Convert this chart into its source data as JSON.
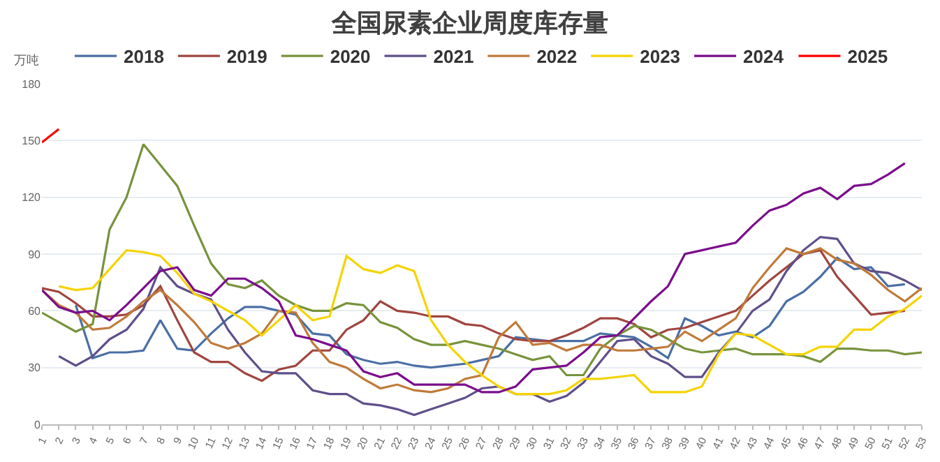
{
  "chart_data": {
    "type": "line",
    "title": "全国尿素企业周度库存量",
    "ylabel": "万吨",
    "categories": [
      "1",
      "2",
      "3",
      "4",
      "5",
      "6",
      "7",
      "8",
      "9",
      "10",
      "11",
      "12",
      "13",
      "14",
      "15",
      "16",
      "17",
      "18",
      "19",
      "20",
      "21",
      "22",
      "23",
      "24",
      "25",
      "26",
      "27",
      "28",
      "29",
      "30",
      "31",
      "32",
      "33",
      "34",
      "35",
      "36",
      "37",
      "38",
      "39",
      "40",
      "41",
      "42",
      "43",
      "44",
      "45",
      "46",
      "47",
      "48",
      "49",
      "50",
      "51",
      "52",
      "53"
    ],
    "ylim": [
      0,
      180
    ],
    "yticks": [
      0,
      30,
      60,
      90,
      120,
      150,
      180
    ],
    "grid": "y",
    "legend": "top",
    "marker": "none",
    "line_style": "solid",
    "series": [
      {
        "name": "2018",
        "color": "#4a6fa5",
        "values": [
          null,
          null,
          63,
          35,
          38,
          38,
          39,
          55,
          40,
          39,
          48,
          56,
          62,
          62,
          60,
          58,
          48,
          47,
          37,
          34,
          32,
          33,
          31,
          30,
          31,
          32,
          34,
          36,
          46,
          45,
          44,
          44,
          44,
          48,
          47,
          46,
          41,
          35,
          56,
          52,
          47,
          49,
          46,
          52,
          65,
          70,
          78,
          88,
          82,
          83,
          73,
          74,
          null
        ]
      },
      {
        "name": "2019",
        "color": "#a0453f",
        "values": [
          72,
          70,
          64,
          57,
          57,
          58,
          63,
          73,
          55,
          38,
          33,
          33,
          27,
          23,
          29,
          31,
          39,
          39,
          50,
          55,
          65,
          60,
          59,
          57,
          57,
          53,
          52,
          48,
          45,
          44,
          44,
          47,
          51,
          56,
          56,
          53,
          46,
          50,
          51,
          54,
          57,
          60,
          68,
          76,
          83,
          90,
          92,
          78,
          68,
          58,
          59,
          60,
          null
        ]
      },
      {
        "name": "2020",
        "color": "#77933c",
        "values": [
          59,
          54,
          49,
          53,
          103,
          120,
          148,
          137,
          126,
          105,
          85,
          74,
          72,
          76,
          68,
          63,
          60,
          60,
          64,
          63,
          54,
          51,
          45,
          42,
          42,
          44,
          42,
          40,
          37,
          34,
          36,
          26,
          26,
          40,
          47,
          52,
          50,
          45,
          40,
          38,
          39,
          40,
          37,
          37,
          37,
          36,
          33,
          40,
          40,
          39,
          39,
          37,
          38
        ]
      },
      {
        "name": "2021",
        "color": "#5f4f8a",
        "values": [
          null,
          36,
          31,
          36,
          45,
          50,
          61,
          83,
          73,
          69,
          66,
          50,
          38,
          28,
          27,
          27,
          18,
          16,
          16,
          11,
          10,
          8,
          5,
          8,
          11,
          14,
          19,
          20,
          16,
          16,
          12,
          15,
          22,
          33,
          44,
          45,
          36,
          32,
          25,
          25,
          38,
          48,
          60,
          66,
          81,
          92,
          99,
          98,
          85,
          81,
          80,
          76,
          71
        ]
      },
      {
        "name": "2022",
        "color": "#c07a3a",
        "values": [
          71,
          63,
          59,
          50,
          51,
          57,
          65,
          71,
          63,
          54,
          43,
          40,
          43,
          48,
          60,
          59,
          43,
          33,
          30,
          24,
          19,
          21,
          18,
          17,
          19,
          24,
          26,
          46,
          54,
          42,
          43,
          39,
          42,
          42,
          39,
          39,
          40,
          41,
          49,
          44,
          50,
          56,
          72,
          83,
          93,
          90,
          93,
          87,
          85,
          79,
          71,
          65,
          72
        ]
      },
      {
        "name": "2023",
        "color": "#f5d300",
        "values": [
          null,
          73,
          71,
          72,
          82,
          92,
          91,
          89,
          80,
          69,
          65,
          60,
          55,
          47,
          55,
          63,
          55,
          57,
          89,
          82,
          80,
          84,
          81,
          55,
          42,
          33,
          26,
          20,
          16,
          16,
          16,
          18,
          24,
          24,
          25,
          26,
          17,
          17,
          17,
          20,
          37,
          48,
          47,
          42,
          37,
          37,
          41,
          41,
          50,
          50,
          57,
          61,
          68
        ]
      },
      {
        "name": "2024",
        "color": "#7b0d8c",
        "values": [
          71,
          62,
          59,
          60,
          55,
          63,
          72,
          81,
          83,
          71,
          68,
          77,
          77,
          72,
          65,
          47,
          45,
          42,
          39,
          28,
          25,
          27,
          21,
          21,
          21,
          21,
          17,
          17,
          20,
          29,
          30,
          31,
          38,
          46,
          47,
          56,
          65,
          73,
          90,
          92,
          94,
          96,
          105,
          113,
          116,
          122,
          125,
          119,
          126,
          127,
          132,
          138,
          null
        ]
      },
      {
        "name": "2025",
        "color": "#ff0000",
        "values": [
          149,
          156,
          null,
          null,
          null,
          null,
          null,
          null,
          null,
          null,
          null,
          null,
          null,
          null,
          null,
          null,
          null,
          null,
          null,
          null,
          null,
          null,
          null,
          null,
          null,
          null,
          null,
          null,
          null,
          null,
          null,
          null,
          null,
          null,
          null,
          null,
          null,
          null,
          null,
          null,
          null,
          null,
          null,
          null,
          null,
          null,
          null,
          null,
          null,
          null,
          null,
          null,
          null
        ]
      }
    ]
  }
}
